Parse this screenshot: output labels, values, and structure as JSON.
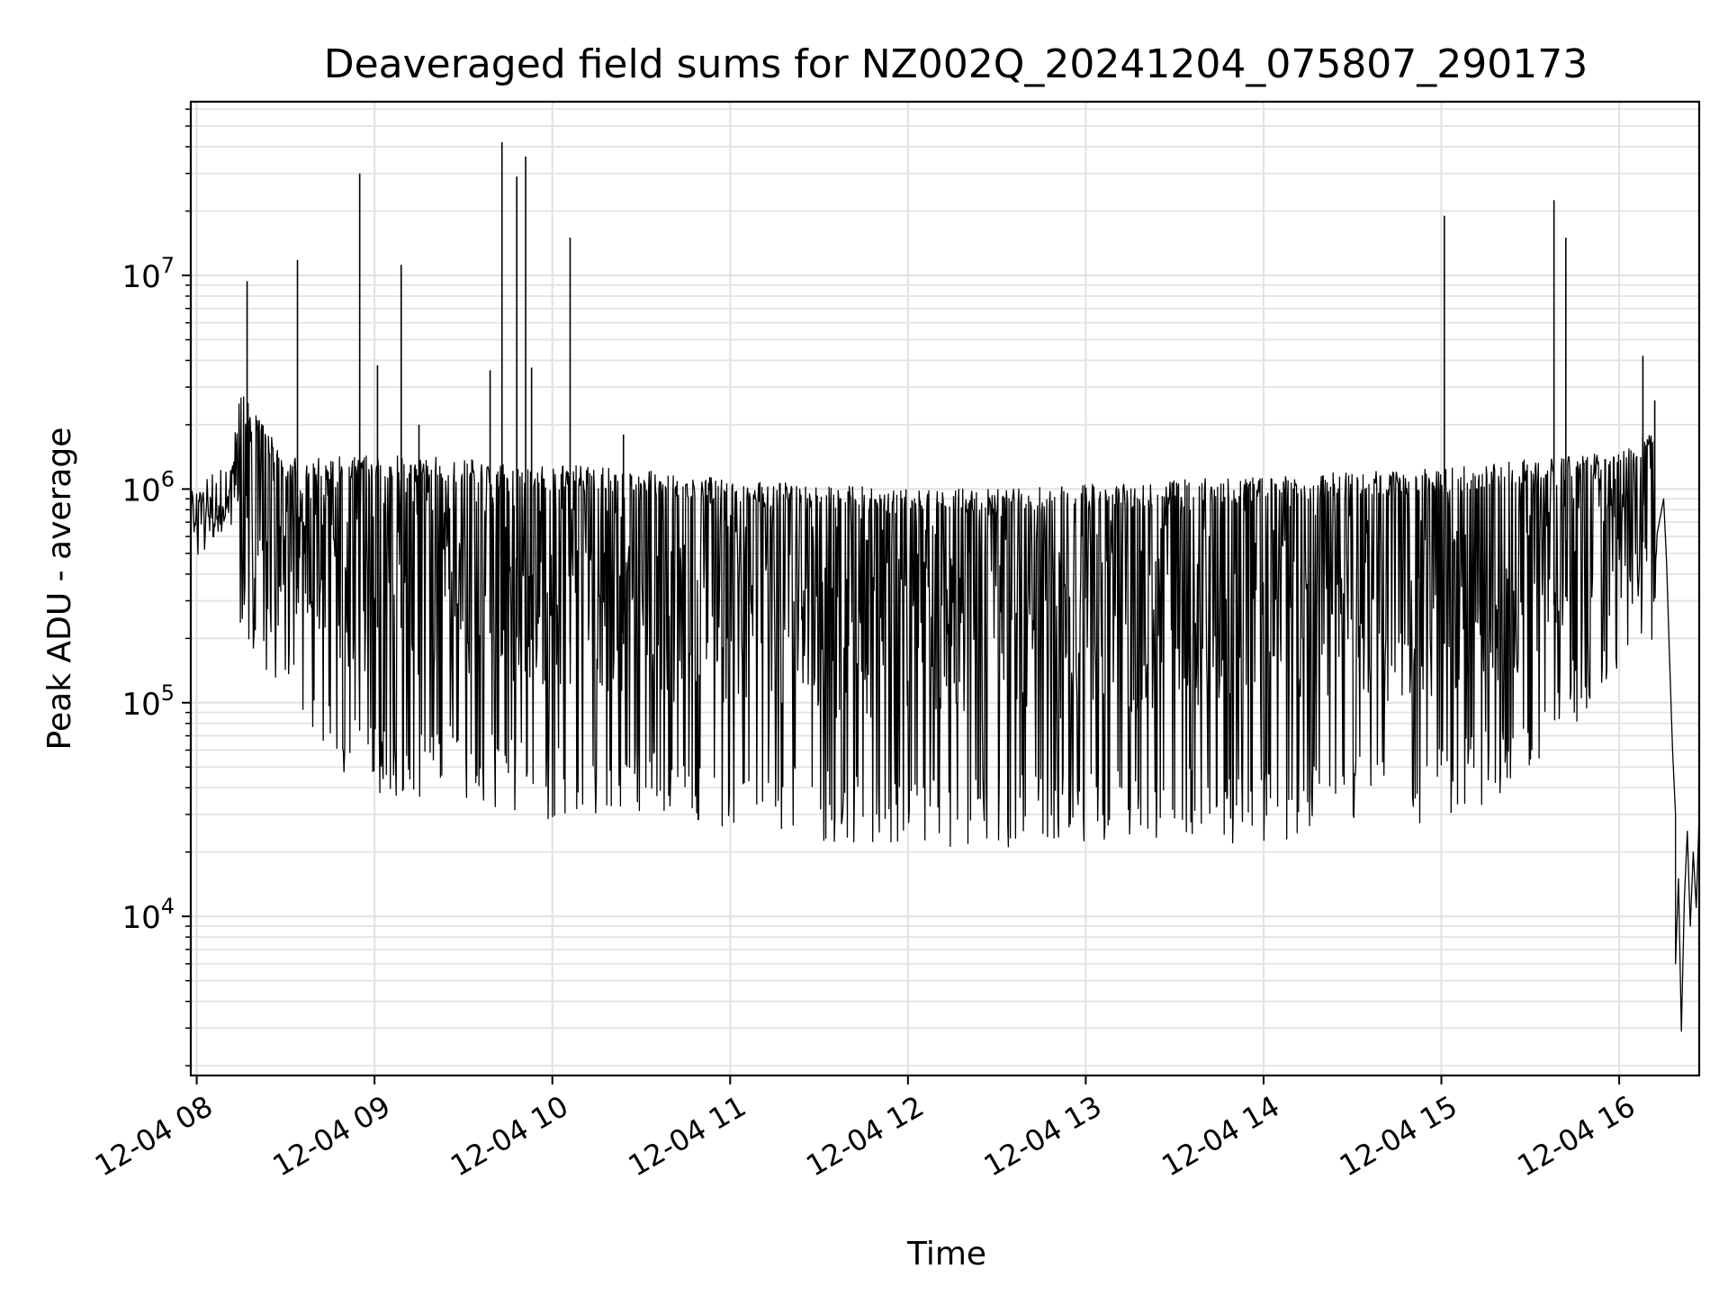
{
  "chart_data": {
    "type": "line",
    "title": "Deaveraged field sums for NZ002Q_20241204_075807_290173",
    "xlabel": "Time",
    "ylabel": "Peak ADU - average",
    "x_scale": "time",
    "y_scale": "log",
    "xlim": [
      "2024-12-04 07:58",
      "2024-12-04 16:27"
    ],
    "ylim": [
      1800,
      65000000
    ],
    "grid": true,
    "legend": "none",
    "x_ticks": [
      {
        "t": "2024-12-04 08:00",
        "label": "12-04 08"
      },
      {
        "t": "2024-12-04 09:00",
        "label": "12-04 09"
      },
      {
        "t": "2024-12-04 10:00",
        "label": "12-04 10"
      },
      {
        "t": "2024-12-04 11:00",
        "label": "12-04 11"
      },
      {
        "t": "2024-12-04 12:00",
        "label": "12-04 12"
      },
      {
        "t": "2024-12-04 13:00",
        "label": "12-04 13"
      },
      {
        "t": "2024-12-04 14:00",
        "label": "12-04 14"
      },
      {
        "t": "2024-12-04 15:00",
        "label": "12-04 15"
      },
      {
        "t": "2024-12-04 16:00",
        "label": "12-04 16"
      }
    ],
    "y_ticks": [
      {
        "value": 10000,
        "base": "10",
        "exp": "4"
      },
      {
        "value": 100000,
        "base": "10",
        "exp": "5"
      },
      {
        "value": 1000000,
        "base": "10",
        "exp": "6"
      },
      {
        "value": 10000000,
        "base": "10",
        "exp": "7"
      }
    ],
    "series": [
      {
        "color": "#000000",
        "envelope": [
          {
            "t": "2024-12-04 07:58",
            "upper": 1000000,
            "lower": 430000
          },
          {
            "t": "2024-12-04 08:10",
            "upper": 900000,
            "lower": 600000
          },
          {
            "t": "2024-12-04 08:15",
            "upper": 3000000,
            "lower": 220000
          },
          {
            "t": "2024-12-04 08:30",
            "upper": 1400000,
            "lower": 100000
          },
          {
            "t": "2024-12-04 08:45",
            "upper": 1450000,
            "lower": 50000
          },
          {
            "t": "2024-12-04 09:00",
            "upper": 1450000,
            "lower": 35000
          },
          {
            "t": "2024-12-04 09:30",
            "upper": 1400000,
            "lower": 35000
          },
          {
            "t": "2024-12-04 10:00",
            "upper": 1300000,
            "lower": 28000
          },
          {
            "t": "2024-12-04 10:30",
            "upper": 1250000,
            "lower": 28000
          },
          {
            "t": "2024-12-04 11:00",
            "upper": 1100000,
            "lower": 25000
          },
          {
            "t": "2024-12-04 11:30",
            "upper": 1050000,
            "lower": 22000
          },
          {
            "t": "2024-12-04 12:00",
            "upper": 1000000,
            "lower": 20000
          },
          {
            "t": "2024-12-04 12:30",
            "upper": 1000000,
            "lower": 21000
          },
          {
            "t": "2024-12-04 13:00",
            "upper": 1050000,
            "lower": 22000
          },
          {
            "t": "2024-12-04 13:30",
            "upper": 1100000,
            "lower": 22000
          },
          {
            "t": "2024-12-04 14:00",
            "upper": 1150000,
            "lower": 22000
          },
          {
            "t": "2024-12-04 14:30",
            "upper": 1200000,
            "lower": 25000
          },
          {
            "t": "2024-12-04 15:00",
            "upper": 1250000,
            "lower": 28000
          },
          {
            "t": "2024-12-04 15:30",
            "upper": 1400000,
            "lower": 40000
          },
          {
            "t": "2024-12-04 16:00",
            "upper": 1500000,
            "lower": 150000
          },
          {
            "t": "2024-12-04 16:13",
            "upper": 2000000,
            "lower": 200000
          }
        ],
        "spikes": [
          {
            "t": "2024-12-04 08:17",
            "value": 9400000
          },
          {
            "t": "2024-12-04 08:34",
            "value": 11800000
          },
          {
            "t": "2024-12-04 08:55",
            "value": 30000000
          },
          {
            "t": "2024-12-04 09:01",
            "value": 3800000
          },
          {
            "t": "2024-12-04 09:09",
            "value": 11200000
          },
          {
            "t": "2024-12-04 09:15",
            "value": 2000000
          },
          {
            "t": "2024-12-04 09:39",
            "value": 3600000
          },
          {
            "t": "2024-12-04 09:43",
            "value": 42000000
          },
          {
            "t": "2024-12-04 09:48",
            "value": 29000000
          },
          {
            "t": "2024-12-04 09:51",
            "value": 36000000
          },
          {
            "t": "2024-12-04 09:53",
            "value": 3700000
          },
          {
            "t": "2024-12-04 10:06",
            "value": 15000000
          },
          {
            "t": "2024-12-04 10:24",
            "value": 1800000
          },
          {
            "t": "2024-12-04 15:01",
            "value": 19000000
          },
          {
            "t": "2024-12-04 15:38",
            "value": 22500000
          },
          {
            "t": "2024-12-04 15:42",
            "value": 15000000
          },
          {
            "t": "2024-12-04 16:08",
            "value": 4200000
          },
          {
            "t": "2024-12-04 16:12",
            "value": 2600000
          }
        ],
        "tail": [
          {
            "t": "2024-12-04 16:15",
            "value": 900000
          },
          {
            "t": "2024-12-04 16:16",
            "value": 450000
          },
          {
            "t": "2024-12-04 16:17",
            "value": 160000
          },
          {
            "t": "2024-12-04 16:18",
            "value": 60000
          },
          {
            "t": "2024-12-04 16:19",
            "value": 30000
          },
          {
            "t": "2024-12-04 16:19",
            "value": 6000
          },
          {
            "t": "2024-12-04 16:20",
            "value": 15000
          },
          {
            "t": "2024-12-04 16:21",
            "value": 2900
          },
          {
            "t": "2024-12-04 16:22",
            "value": 12000
          },
          {
            "t": "2024-12-04 16:23",
            "value": 25000
          },
          {
            "t": "2024-12-04 16:24",
            "value": 9000
          },
          {
            "t": "2024-12-04 16:25",
            "value": 20000
          },
          {
            "t": "2024-12-04 16:26",
            "value": 11000
          },
          {
            "t": "2024-12-04 16:27",
            "value": 30000
          }
        ]
      }
    ]
  }
}
